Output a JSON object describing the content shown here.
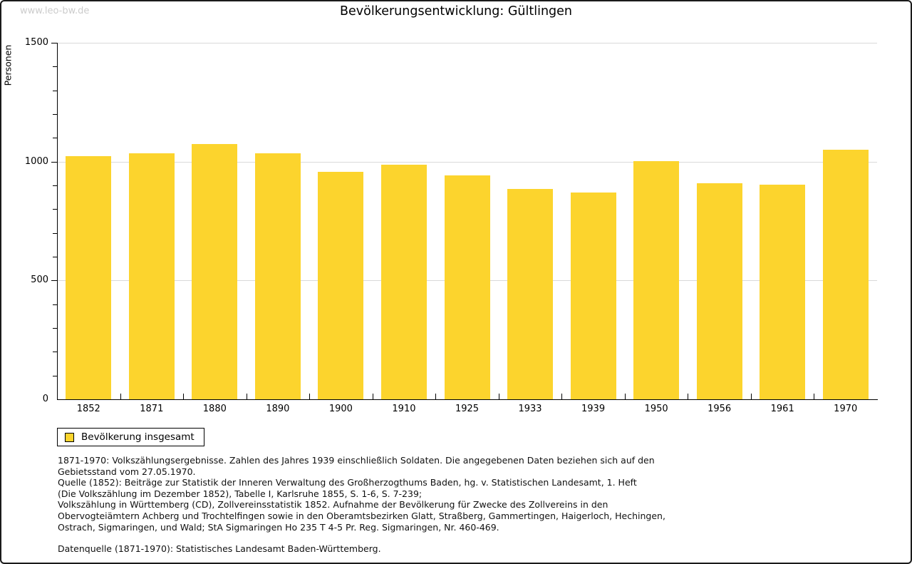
{
  "watermark": "www.leo-bw.de",
  "chart_data": {
    "type": "bar",
    "title": "Bevölkerungsentwicklung: Gültlingen",
    "xlabel": "",
    "ylabel": "Personen",
    "categories": [
      "1852",
      "1871",
      "1880",
      "1890",
      "1900",
      "1910",
      "1925",
      "1933",
      "1939",
      "1950",
      "1956",
      "1961",
      "1970"
    ],
    "values": [
      1023,
      1035,
      1073,
      1035,
      956,
      988,
      941,
      884,
      871,
      1001,
      908,
      903,
      1050
    ],
    "ylim": [
      0,
      1500
    ],
    "ytick_major": 500,
    "ytick_minor": 100,
    "ytick_labels": [
      "0",
      "500",
      "1000",
      "1500"
    ],
    "grid": "horizontal lines at major y ticks",
    "bar_color": "#fcd42d",
    "gridline_color": "#d9d9d9",
    "legend": {
      "position": "bottom-left",
      "entries": [
        {
          "label": "Bevölkerung insgesamt",
          "color": "#fcd42d"
        }
      ]
    }
  },
  "footnotes": {
    "lines": [
      "1871-1970: Volkszählungsergebnisse. Zahlen des Jahres 1939 einschließlich Soldaten. Die angegebenen Daten beziehen sich auf den",
      "Gebietsstand vom 27.05.1970.",
      "Quelle (1852): Beiträge zur Statistik der Inneren Verwaltung des Großherzogthums Baden, hg. v. Statistischen Landesamt, 1. Heft",
      "(Die Volkszählung im Dezember 1852), Tabelle I, Karlsruhe 1855, S. 1-6, S. 7-239;",
      "Volkszählung in Württemberg (CD), Zollvereinsstatistik 1852. Aufnahme der Bevölkerung für Zwecke des Zollvereins in den",
      "Obervogteiämtern Achberg und Trochtelfingen sowie in den Oberamtsbezirken Glatt, Straßberg, Gammertingen, Haigerloch, Hechingen,",
      "Ostrach, Sigmaringen, und Wald; StA Sigmaringen Ho 235 T 4-5 Pr. Reg. Sigmaringen, Nr. 460-469."
    ],
    "datasource": "Datenquelle (1871-1970): Statistisches Landesamt Baden-Württemberg."
  },
  "colors": {
    "bar": "#fcd42d",
    "gridline": "#d9d9d9",
    "axis": "#000000",
    "watermark": "#cccccc",
    "background": "#ffffff",
    "frame_border": "#1a1a1a"
  }
}
